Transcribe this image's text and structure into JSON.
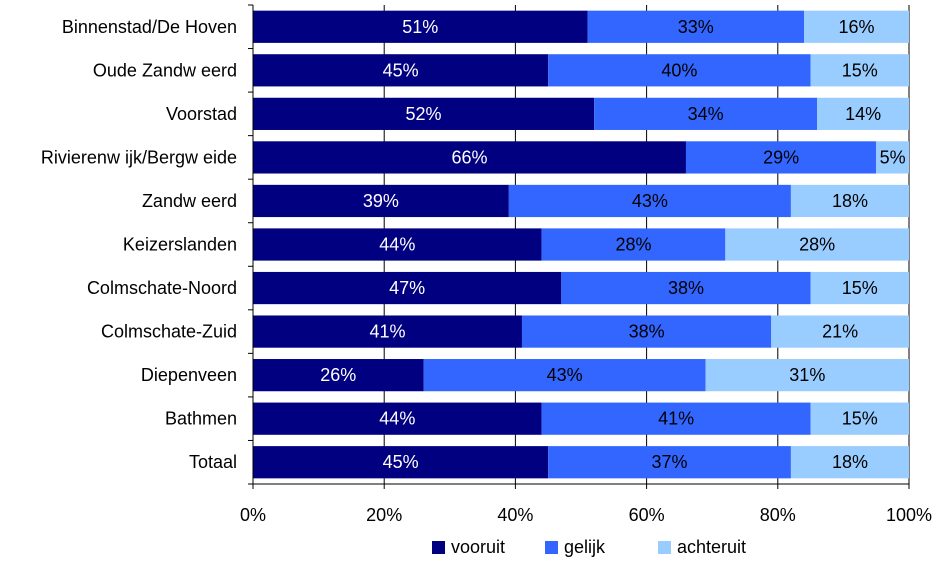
{
  "chart_data": {
    "type": "bar",
    "orientation": "horizontal",
    "stacked": true,
    "categories": [
      "Binnenstad/De Hoven",
      "Oude Zandw eerd",
      "Voorstad",
      "Rivierenw ijk/Bergw eide",
      "Zandw eerd",
      "Keizerslanden",
      "Colmschate-Noord",
      "Colmschate-Zuid",
      "Diepenveen",
      "Bathmen",
      "Totaal"
    ],
    "series": [
      {
        "name": "vooruit",
        "color": "#000080",
        "label_color": "#ffffff",
        "values": [
          51,
          45,
          52,
          66,
          39,
          44,
          47,
          41,
          26,
          44,
          45
        ]
      },
      {
        "name": "gelijk",
        "color": "#3366ff",
        "label_color": "#000000",
        "values": [
          33,
          40,
          34,
          29,
          43,
          28,
          38,
          38,
          43,
          41,
          37
        ]
      },
      {
        "name": "achteruit",
        "color": "#99ccff",
        "label_color": "#000000",
        "values": [
          16,
          15,
          14,
          5,
          18,
          28,
          15,
          21,
          31,
          15,
          18
        ]
      }
    ],
    "xlim": [
      0,
      100
    ],
    "xticks": [
      "0%",
      "20%",
      "40%",
      "60%",
      "80%",
      "100%"
    ],
    "xtick_values": [
      0,
      20,
      40,
      60,
      80,
      100
    ],
    "value_suffix": "%",
    "legend_position": "bottom",
    "grid": "vertical",
    "title": "",
    "xlabel": "",
    "ylabel": ""
  }
}
